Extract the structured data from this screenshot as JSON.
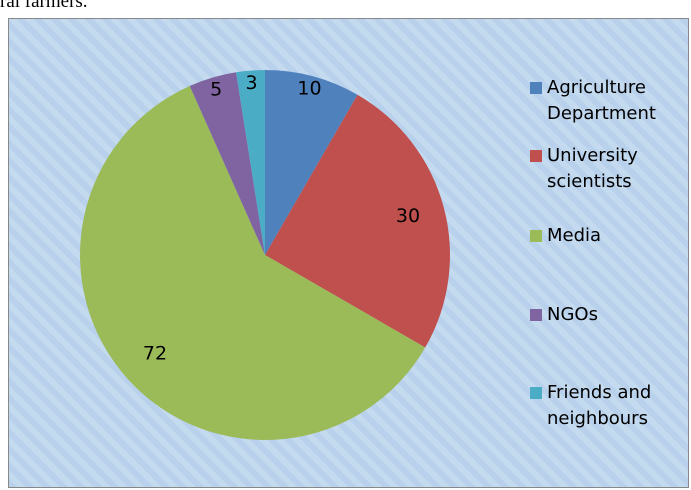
{
  "caption": "ral farmers.",
  "chart_data": {
    "type": "pie",
    "categories": [
      "Agriculture Department",
      "University scientists",
      "Media",
      "NGOs",
      "Friends and neighbours"
    ],
    "values": [
      10,
      30,
      72,
      5,
      3
    ],
    "colors": [
      "#4f81bd",
      "#c0504d",
      "#9bbb59",
      "#8064a2",
      "#4bacc6"
    ],
    "legend": "right"
  }
}
